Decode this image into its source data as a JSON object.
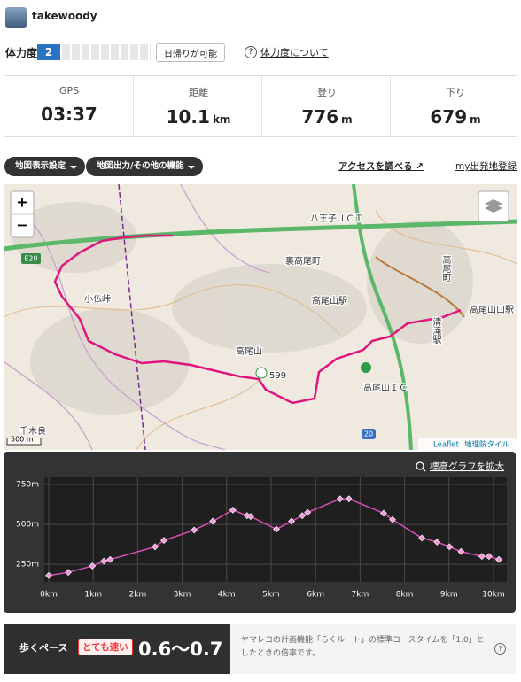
{
  "header": {
    "user": "takewoody"
  },
  "fitness": {
    "label": "体力度",
    "level": 2,
    "badge": "日帰りが可能",
    "link": "体力度について"
  },
  "stats": [
    {
      "label": "GPS",
      "value": "03:37"
    },
    {
      "label": "距離",
      "value": 10.1,
      "unit": "km"
    },
    {
      "label": "登り",
      "value": 776,
      "unit": "m"
    },
    {
      "label": "下り",
      "value": 679,
      "unit": "m"
    }
  ],
  "toolbar": {
    "map_settings": "地図表示設定",
    "map_output": "地図出力/その他の機能",
    "access": "アクセスを調べる",
    "register": "my出発地登録"
  },
  "map": {
    "labels": [
      "八王子ＪＣＴ",
      "裏高尾町",
      "高尾山駅",
      "小仏峠",
      "高尾山",
      "599",
      "高尾山ＩＣ",
      "高尾町",
      "高尾山口駅",
      "清滝駅",
      "千木良",
      "E20",
      "20"
    ],
    "zoom_in": "+",
    "zoom_out": "−",
    "scale": "500 m",
    "attribution": [
      "Leaflet",
      "地理院タイル"
    ]
  },
  "chart_data": {
    "type": "line",
    "link": "標高グラフを拡大",
    "x": [
      0,
      0.44,
      0.98,
      1.24,
      1.38,
      2.39,
      2.59,
      3.27,
      3.69,
      4.14,
      4.46,
      4.54,
      5.12,
      5.46,
      5.7,
      5.82,
      6.55,
      6.75,
      7.53,
      7.73,
      8.39,
      8.73,
      9.01,
      9.27,
      9.74,
      9.9,
      10.12
    ],
    "values": [
      180,
      200,
      240,
      270,
      280,
      360,
      400,
      465,
      520,
      590,
      555,
      550,
      470,
      520,
      555,
      575,
      660,
      660,
      570,
      530,
      415,
      390,
      360,
      330,
      300,
      300,
      280
    ],
    "color": "#d94fb5",
    "marker_color": "#f29ad8",
    "xlim": [
      -0.1,
      10.3
    ],
    "ylim": [
      140,
      800
    ],
    "xticks": [
      {
        "value": 0,
        "label": "0km"
      },
      {
        "value": 1,
        "label": "1km"
      },
      {
        "value": 2,
        "label": "2km"
      },
      {
        "value": 3,
        "label": "3km"
      },
      {
        "value": 4,
        "label": "4km"
      },
      {
        "value": 5,
        "label": "5km"
      },
      {
        "value": 6,
        "label": "6km"
      },
      {
        "value": 7,
        "label": "7km"
      },
      {
        "value": 8,
        "label": "8km"
      },
      {
        "value": 9,
        "label": "9km"
      },
      {
        "value": 10,
        "label": "10km"
      }
    ],
    "yticks": [
      {
        "value": 250,
        "label": "250m"
      },
      {
        "value": 500,
        "label": "500m"
      },
      {
        "value": 750,
        "label": "750m"
      }
    ],
    "grid": true
  },
  "pace": {
    "label": "歩くペース",
    "rating": "とても速い",
    "value": "0.6～0.7",
    "note": "ヤマレコの計画機能「らくルート」の標準コースタイムを「1.0」としたときの倍率です。"
  }
}
